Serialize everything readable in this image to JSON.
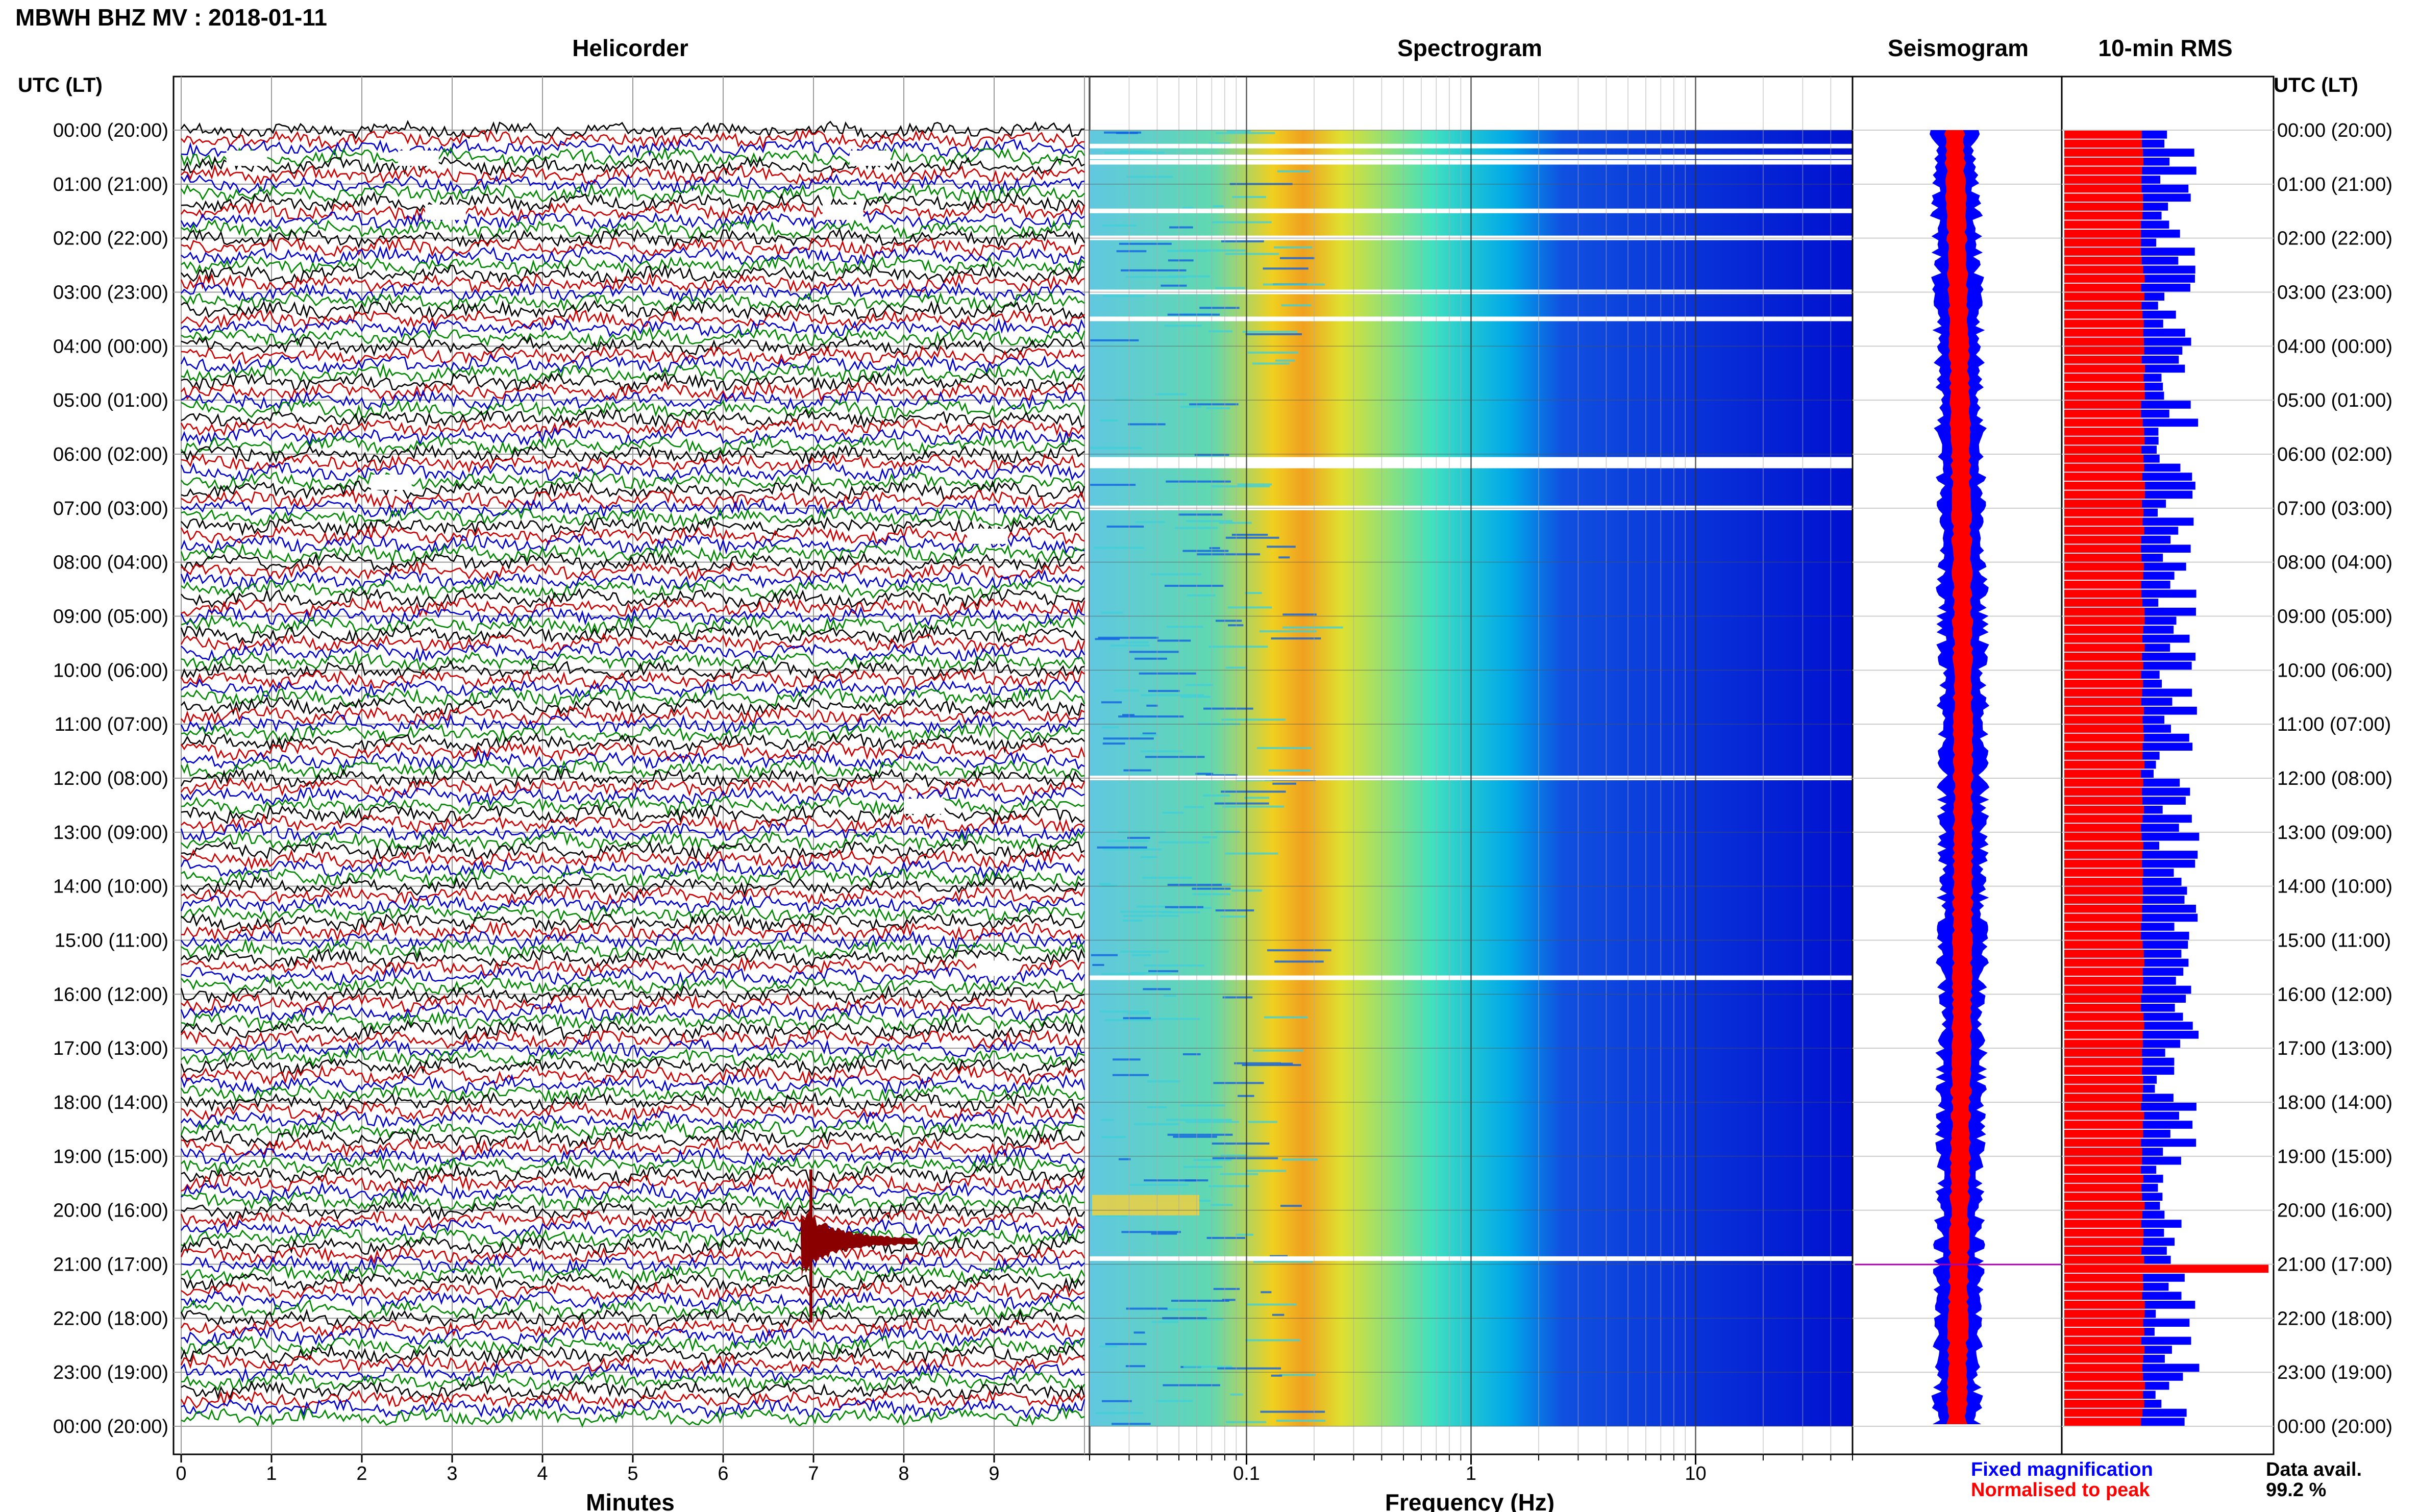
{
  "header": {
    "title": "MBWH BHZ MV : 2018-01-11",
    "utc_label_left": "UTC (LT)",
    "utc_label_right": "UTC (LT)"
  },
  "panels": {
    "helicorder": "Helicorder",
    "spectrogram": "Spectrogram",
    "seismogram": "Seismogram",
    "rms": "10-min RMS"
  },
  "row_labels": [
    "00:00 (20:00)",
    "01:00 (21:00)",
    "02:00 (22:00)",
    "03:00 (23:00)",
    "04:00 (00:00)",
    "05:00 (01:00)",
    "06:00 (02:00)",
    "07:00 (03:00)",
    "08:00 (04:00)",
    "09:00 (05:00)",
    "10:00 (06:00)",
    "11:00 (07:00)",
    "12:00 (08:00)",
    "13:00 (09:00)",
    "14:00 (10:00)",
    "15:00 (11:00)",
    "16:00 (12:00)",
    "17:00 (13:00)",
    "18:00 (14:00)",
    "19:00 (15:00)",
    "20:00 (16:00)",
    "21:00 (17:00)",
    "22:00 (18:00)",
    "23:00 (19:00)",
    "00:00 (20:00)"
  ],
  "legend": {
    "fixed": "Fixed magnification",
    "normalised": "Normalised to peak",
    "fixed_color": "#0000ff",
    "normalised_color": "#ff0000"
  },
  "availability": {
    "label": "Data avail.",
    "value": "99.2 %"
  },
  "chart_data": [
    {
      "type": "line",
      "title": "Helicorder",
      "xlabel": "Minutes",
      "x_ticks": [
        "0",
        "1",
        "2",
        "3",
        "4",
        "5",
        "6",
        "7",
        "8",
        "9"
      ],
      "xlim": [
        0,
        10
      ],
      "trace_colors": [
        "#000000",
        "#cc0000",
        "#0000cc",
        "#008800"
      ],
      "traces_per_hour": 6,
      "event": {
        "hour": 20,
        "minute": 7.0,
        "label": ""
      },
      "data_gaps": [
        {
          "hour": 0,
          "minute": 0.5
        },
        {
          "hour": 0,
          "minute": 2.4
        },
        {
          "hour": 0,
          "minute": 7.4
        },
        {
          "hour": 1,
          "minute": 2.7
        },
        {
          "hour": 1,
          "minute": 7.1
        },
        {
          "hour": 6,
          "minute": 2.1
        },
        {
          "hour": 7,
          "minute": 8.7
        },
        {
          "hour": 12,
          "minute": 8.0
        },
        {
          "hour": 15,
          "minute": 8.8
        }
      ]
    },
    {
      "type": "heatmap",
      "title": "Spectrogram",
      "xlabel": "Frequency (Hz)",
      "x_scale": "log",
      "xlim": [
        0.02,
        50
      ],
      "x_ticks": [
        "0.1",
        "1",
        "10"
      ],
      "colormap": [
        "#0010d0",
        "#00a8e8",
        "#40e0c0",
        "#f0f030",
        "#f0a020"
      ],
      "gaps_hours": [
        0.3,
        0.5,
        0.6,
        1.5,
        2.0,
        3.0,
        3.5,
        6.1,
        7.0,
        12.0,
        15.7,
        20.9
      ]
    },
    {
      "type": "line",
      "title": "Seismogram",
      "series": [
        {
          "name": "Fixed magnification",
          "color": "#0000ff"
        },
        {
          "name": "Normalised to peak",
          "color": "#ff0000"
        }
      ]
    },
    {
      "type": "bar",
      "title": "10-min RMS",
      "orientation": "horizontal",
      "interval_minutes": 10,
      "series": [
        {
          "name": "Fixed magnification",
          "color": "#0000ff"
        },
        {
          "name": "Normalised to peak",
          "color": "#ff0000"
        }
      ],
      "peak": {
        "hour": 21.0
      }
    }
  ]
}
